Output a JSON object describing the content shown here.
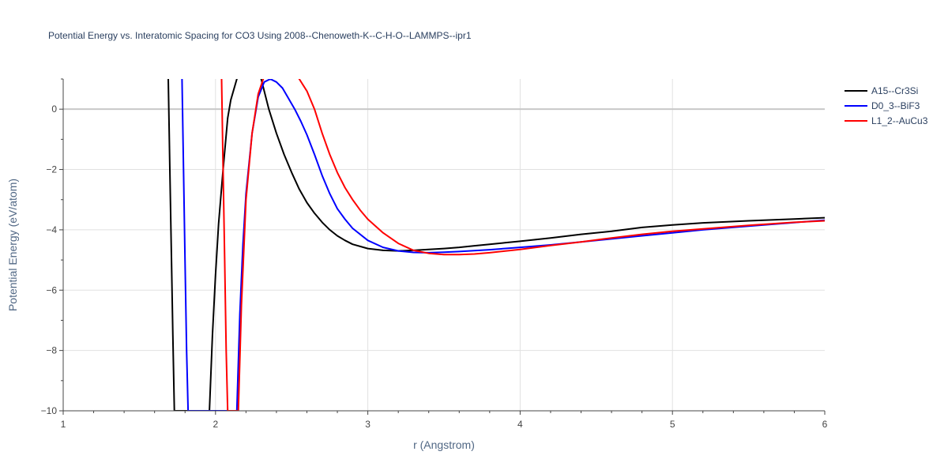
{
  "chart_data": {
    "type": "line",
    "title": "Potential Energy vs. Interatomic Spacing for CO3 Using 2008--Chenoweth-K--C-H-O--LAMMPS--ipr1",
    "xlabel": "r (Angstrom)",
    "ylabel": "Potential Energy (eV/atom)",
    "xlim": [
      1,
      6
    ],
    "ylim": [
      -10,
      1
    ],
    "xticks": [
      "1",
      "2",
      "3",
      "4",
      "5",
      "6"
    ],
    "yticks": [
      "0",
      "−2",
      "−4",
      "−6",
      "−8",
      "−10"
    ],
    "grid": true,
    "legend_position": "top-right",
    "series": [
      {
        "name": "A15--Cr3Si",
        "color": "#000000",
        "x": [
          1.69,
          1.7,
          1.72,
          1.73,
          1.96,
          1.98,
          2.0,
          2.02,
          2.05,
          2.08,
          2.1,
          2.14,
          2.2,
          2.26,
          2.3,
          2.35,
          2.4,
          2.45,
          2.5,
          2.55,
          2.6,
          2.65,
          2.7,
          2.75,
          2.8,
          2.85,
          2.9,
          3.0,
          3.1,
          3.2,
          3.3,
          3.4,
          3.5,
          3.6,
          3.7,
          3.8,
          3.9,
          4.0,
          4.2,
          4.4,
          4.6,
          4.8,
          5.0,
          5.2,
          5.5,
          5.8,
          6.0
        ],
        "y": [
          1.0,
          -2.0,
          -7.5,
          -10.0,
          -10.0,
          -7.5,
          -5.5,
          -3.8,
          -2.0,
          -0.3,
          0.3,
          1.0,
          1.6,
          1.6,
          1.0,
          0.0,
          -0.8,
          -1.5,
          -2.1,
          -2.65,
          -3.1,
          -3.45,
          -3.75,
          -4.0,
          -4.2,
          -4.35,
          -4.48,
          -4.62,
          -4.68,
          -4.7,
          -4.68,
          -4.65,
          -4.62,
          -4.58,
          -4.53,
          -4.48,
          -4.43,
          -4.38,
          -4.27,
          -4.15,
          -4.05,
          -3.92,
          -3.84,
          -3.77,
          -3.7,
          -3.64,
          -3.6
        ]
      },
      {
        "name": "D0_3--BiF3",
        "color": "#0000ff",
        "x": [
          1.78,
          1.79,
          1.8,
          1.81,
          1.82,
          2.14,
          2.16,
          2.18,
          2.2,
          2.24,
          2.28,
          2.32,
          2.36,
          2.4,
          2.44,
          2.48,
          2.52,
          2.56,
          2.6,
          2.65,
          2.7,
          2.75,
          2.8,
          2.85,
          2.9,
          3.0,
          3.1,
          3.2,
          3.3,
          3.4,
          3.5,
          3.6,
          3.8,
          4.0,
          4.2,
          4.4,
          4.6,
          4.8,
          5.0,
          5.2,
          5.5,
          5.8,
          6.0
        ],
        "y": [
          1.0,
          -2.0,
          -5.0,
          -8.0,
          -10.0,
          -10.0,
          -6.8,
          -4.5,
          -2.8,
          -0.8,
          0.4,
          0.9,
          1.0,
          0.9,
          0.7,
          0.35,
          0.0,
          -0.4,
          -0.85,
          -1.5,
          -2.2,
          -2.8,
          -3.3,
          -3.65,
          -3.95,
          -4.35,
          -4.58,
          -4.7,
          -4.75,
          -4.76,
          -4.74,
          -4.72,
          -4.66,
          -4.58,
          -4.5,
          -4.4,
          -4.3,
          -4.2,
          -4.1,
          -4.0,
          -3.88,
          -3.76,
          -3.68
        ]
      },
      {
        "name": "L1_2--AuCu3",
        "color": "#ff0000",
        "x": [
          2.04,
          2.05,
          2.06,
          2.07,
          2.08,
          2.15,
          2.17,
          2.2,
          2.24,
          2.28,
          2.32,
          2.36,
          2.4,
          2.45,
          2.5,
          2.55,
          2.6,
          2.65,
          2.7,
          2.75,
          2.8,
          2.85,
          2.9,
          2.95,
          3.0,
          3.1,
          3.2,
          3.3,
          3.4,
          3.5,
          3.6,
          3.7,
          3.8,
          4.0,
          4.2,
          4.4,
          4.6,
          4.8,
          5.0,
          5.2,
          5.5,
          5.8,
          6.0
        ],
        "y": [
          1.0,
          -2.0,
          -5.0,
          -8.0,
          -10.0,
          -10.0,
          -6.5,
          -3.0,
          -0.8,
          0.5,
          1.1,
          1.35,
          1.45,
          1.45,
          1.3,
          1.0,
          0.6,
          0.0,
          -0.8,
          -1.5,
          -2.1,
          -2.6,
          -3.0,
          -3.35,
          -3.65,
          -4.1,
          -4.45,
          -4.68,
          -4.78,
          -4.82,
          -4.82,
          -4.8,
          -4.76,
          -4.65,
          -4.52,
          -4.4,
          -4.27,
          -4.15,
          -4.05,
          -3.97,
          -3.85,
          -3.75,
          -3.7
        ]
      }
    ]
  }
}
